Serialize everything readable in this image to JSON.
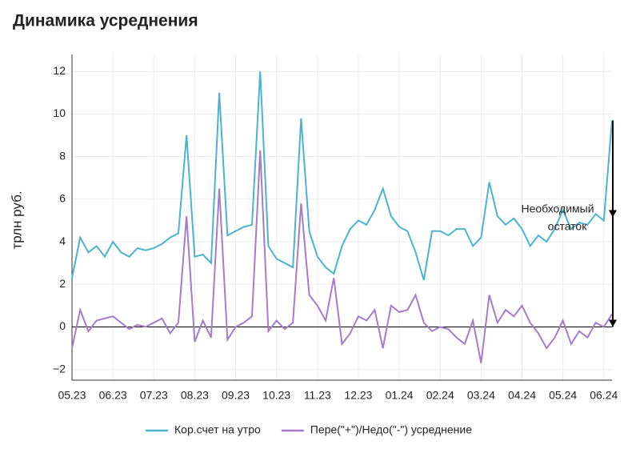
{
  "chart_data": {
    "type": "line",
    "title": "Динамика усреднения",
    "ylabel": "трлн руб.",
    "categories": [
      "05.23",
      null,
      null,
      null,
      null,
      "06.23",
      null,
      null,
      null,
      null,
      "07.23",
      null,
      null,
      null,
      null,
      "08.23",
      null,
      null,
      null,
      null,
      "09.23",
      null,
      null,
      null,
      null,
      "10.23",
      null,
      null,
      null,
      null,
      "11.23",
      null,
      null,
      null,
      null,
      "12.23",
      null,
      null,
      null,
      null,
      "01.24",
      null,
      null,
      null,
      null,
      "02.24",
      null,
      null,
      null,
      null,
      "03.24",
      null,
      null,
      null,
      null,
      "04.24",
      null,
      null,
      null,
      null,
      "05.24",
      null,
      null,
      null,
      null,
      "06.24",
      null
    ],
    "series": [
      {
        "name": "Кор.счет на утро",
        "color": "#4bb3d0",
        "values": [
          2.3,
          4.2,
          3.5,
          3.8,
          3.3,
          4.0,
          3.5,
          3.3,
          3.7,
          3.6,
          3.7,
          3.9,
          4.2,
          4.4,
          9.0,
          3.3,
          3.4,
          3.0,
          11.0,
          4.3,
          4.5,
          4.7,
          4.8,
          12.0,
          3.8,
          3.2,
          3.0,
          2.8,
          9.8,
          4.5,
          3.3,
          2.8,
          2.5,
          3.8,
          4.6,
          5.0,
          4.8,
          5.5,
          6.5,
          5.2,
          4.7,
          4.5,
          3.5,
          2.2,
          4.5,
          4.5,
          4.3,
          4.6,
          4.6,
          3.8,
          4.2,
          6.8,
          5.2,
          4.8,
          5.1,
          4.6,
          3.8,
          4.3,
          4.0,
          4.6,
          5.5,
          4.6,
          4.9,
          4.8,
          5.3,
          5.0,
          9.7
        ]
      },
      {
        "name": "Пере(\"+\")/Недо(\"-\") усреднение",
        "color": "#a57bcb",
        "values": [
          -1.0,
          0.8,
          -0.2,
          0.3,
          0.4,
          0.5,
          0.2,
          -0.1,
          0.1,
          0.0,
          0.2,
          0.4,
          -0.3,
          0.2,
          5.2,
          -0.7,
          0.3,
          -0.5,
          6.5,
          -0.6,
          0.0,
          0.2,
          0.5,
          8.3,
          -0.2,
          0.3,
          -0.1,
          0.2,
          5.8,
          1.5,
          1.0,
          0.3,
          2.3,
          -0.8,
          -0.3,
          0.5,
          0.3,
          0.8,
          -1.0,
          1.0,
          0.7,
          0.8,
          1.5,
          0.2,
          -0.2,
          0.0,
          -0.1,
          -0.5,
          -0.8,
          0.3,
          -1.7,
          1.5,
          0.2,
          0.8,
          0.5,
          1.0,
          0.2,
          -0.3,
          -1.0,
          -0.5,
          0.3,
          -0.8,
          -0.2,
          -0.5,
          0.2,
          0.0,
          0.6
        ]
      }
    ],
    "annotation": "Необходимый остаток",
    "ylim": [
      -2.5,
      12.8
    ],
    "yticks": [
      {
        "value": -2,
        "label": "−2"
      },
      0,
      2,
      4,
      6,
      8,
      10,
      12
    ],
    "grid": true
  }
}
